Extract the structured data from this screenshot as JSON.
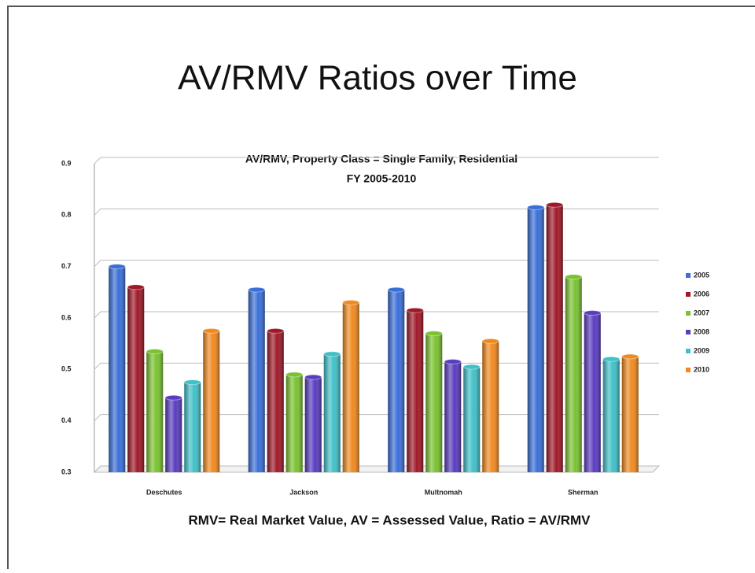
{
  "slide": {
    "title": "AV/RMV Ratios over Time",
    "note": "RMV= Real Market Value, AV = Assessed Value, Ratio = AV/RMV"
  },
  "chart_data": {
    "type": "bar",
    "title": "AV/RMV,  Property Class = Single Family, Residential",
    "subtitle": "FY 2005-2010",
    "categories": [
      "Deschutes",
      "Jackson",
      "Multnomah",
      "Sherman"
    ],
    "series": [
      {
        "name": "2005",
        "color": "#3a6fd8",
        "values": [
          0.7,
          0.655,
          0.655,
          0.815
        ]
      },
      {
        "name": "2006",
        "color": "#a01828",
        "values": [
          0.66,
          0.575,
          0.615,
          0.82
        ]
      },
      {
        "name": "2007",
        "color": "#7ac230",
        "values": [
          0.535,
          0.49,
          0.57,
          0.68
        ]
      },
      {
        "name": "2008",
        "color": "#5a3cc0",
        "values": [
          0.445,
          0.485,
          0.515,
          0.61
        ]
      },
      {
        "name": "2009",
        "color": "#40c0c8",
        "values": [
          0.475,
          0.53,
          0.505,
          0.52
        ]
      },
      {
        "name": "2010",
        "color": "#f08a20",
        "values": [
          0.575,
          0.63,
          0.555,
          0.525
        ]
      }
    ],
    "ylim": [
      0.3,
      0.9
    ],
    "yticks": [
      0.3,
      0.4,
      0.5,
      0.6,
      0.7,
      0.8,
      0.9
    ],
    "grid": true,
    "legend": "right"
  }
}
